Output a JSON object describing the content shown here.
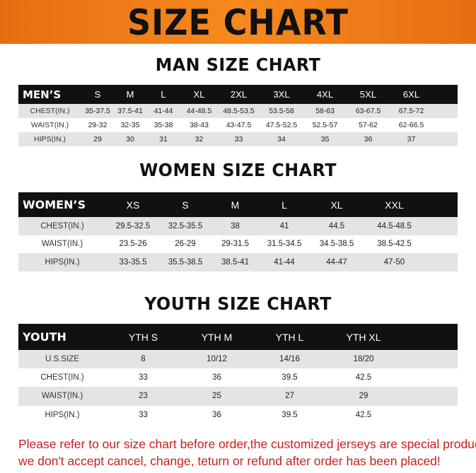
{
  "banner_title": "SIZE CHART",
  "men": {
    "title": "MAN SIZE CHART",
    "header": [
      "MEN’S",
      "S",
      "M",
      "L",
      "XL",
      "2XL",
      "3XL",
      "4XL",
      "5XL",
      "6XL"
    ],
    "rows": [
      [
        "CHEST(IN.)",
        "35-37.5",
        "37.5-41",
        "41-44",
        "44-48.5",
        "48.5-53.5",
        "53.5-58",
        "58-63",
        "63-67.5",
        "67.5-72"
      ],
      [
        "WAIST(IN.)",
        "29-32",
        "32-35",
        "35-38",
        "38-43",
        "43-47.5",
        "47.5-52.5",
        "52.5-57",
        "57-62",
        "62-66.5"
      ],
      [
        "HIPS(IN.)",
        "29",
        "30",
        "31",
        "32",
        "33",
        "34",
        "35",
        "36",
        "37"
      ]
    ]
  },
  "women": {
    "title": "WOMEN SIZE CHART",
    "header": [
      "WOMEN’S",
      "XS",
      "S",
      "M",
      "L",
      "XL",
      "XXL"
    ],
    "rows": [
      [
        "CHEST(IN.)",
        "29.5-32.5",
        "32.5-35.5",
        "38",
        "41",
        "44.5",
        "44.5-48.5"
      ],
      [
        "WAIST(IN.)",
        "23.5-26",
        "26-29",
        "29-31.5",
        "31.5-34.5",
        "34.5-38.5",
        "38.5-42.5"
      ],
      [
        "HIPS(IN.)",
        "33-35.5",
        "35.5-38.5",
        "38.5-41",
        "41-44",
        "44-47",
        "47-50"
      ]
    ]
  },
  "youth": {
    "title": "YOUTH SIZE CHART",
    "header": [
      "YOUTH",
      "YTH S",
      "YTH M",
      "YTH L",
      "YTH XL"
    ],
    "rows": [
      [
        "U.S.SIZE",
        "8",
        "10/12",
        "14/16",
        "18/20"
      ],
      [
        "CHEST(IN.)",
        "33",
        "36",
        "39.5",
        "42.5"
      ],
      [
        "WAIST(IN.)",
        "23",
        "25",
        "27",
        "29"
      ],
      [
        "HIPS(IN.)",
        "33",
        "36",
        "39.5",
        "42.5"
      ]
    ]
  },
  "note": {
    "line1": "Please refer to our size chart before order,the customized jerseys are special products,",
    "line2": "we don't accept cancel, change, teturn or refund after order has been placed!"
  },
  "colors": {
    "banner": "#f58a1f",
    "header_row": "#111111",
    "note": "#c8201c"
  }
}
